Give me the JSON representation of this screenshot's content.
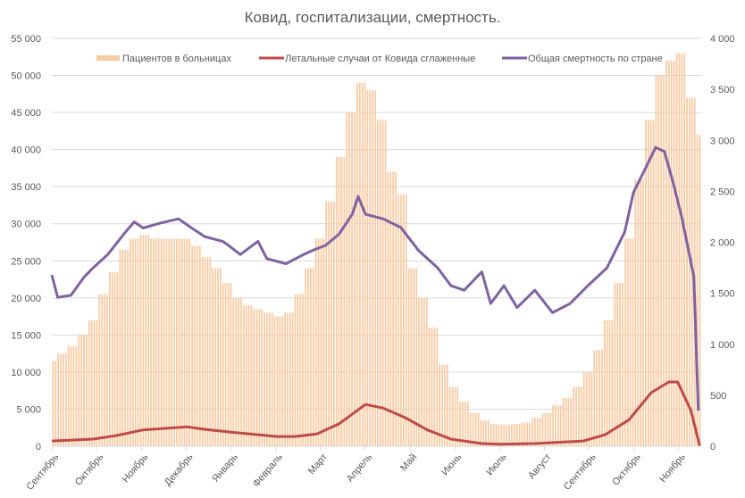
{
  "chart_data": {
    "type": "bar+line",
    "title": "Ковид, госпитализации, смертность.",
    "x_unit": "days since start of September 2020",
    "left_axis": {
      "ylim": [
        0,
        55000
      ],
      "step": 5000,
      "tick_labels": [
        "0",
        "5 000",
        "10 000",
        "15 000",
        "20 000",
        "25 000",
        "30 000",
        "35 000",
        "40 000",
        "45 000",
        "50 000",
        "55 000"
      ]
    },
    "right_axis": {
      "ylim": [
        0,
        4000
      ],
      "step": 500,
      "tick_labels": [
        "0",
        "500",
        "1 000",
        "1 500",
        "2 000",
        "2 500",
        "3 000",
        "3 500",
        "4 000"
      ]
    },
    "xlim": [
      0,
      441
    ],
    "month_labels": [
      "Сентябрь",
      "Октябрь",
      "Ноябрь",
      "Декабрь",
      "Январь",
      "Февраль",
      "Март",
      "Апрель",
      "Май",
      "Июнь",
      "Июль",
      "Август",
      "Сентябрь",
      "Октябрь",
      "Ноябрь"
    ],
    "month_length_days": 30.4,
    "grid": true,
    "legend_position": "top",
    "series": [
      {
        "name": "Пациентов в больницах",
        "type": "bar",
        "axis": "left",
        "color": "#f8cba4",
        "x_step_days": 7,
        "values": [
          11500,
          12500,
          13500,
          15000,
          17000,
          20500,
          23500,
          26500,
          28000,
          28500,
          28000,
          28000,
          28000,
          28000,
          27000,
          25500,
          24000,
          22000,
          20000,
          19000,
          18500,
          18000,
          17500,
          18000,
          20500,
          24000,
          28000,
          33000,
          39000,
          45000,
          49000,
          48000,
          44000,
          37000,
          34000,
          24000,
          20000,
          16000,
          11000,
          8000,
          6000,
          4500,
          3500,
          3000,
          2900,
          3000,
          3200,
          3800,
          4500,
          5500,
          6500,
          8000,
          10000,
          13000,
          17000,
          22000,
          28000,
          36000,
          44000,
          50000,
          52000,
          53000,
          47000,
          42000
        ]
      },
      {
        "name": "Летальные случаи от Ковида сглаженные",
        "type": "line",
        "axis": "right",
        "color": "#be4b48",
        "points": [
          [
            0,
            52
          ],
          [
            28,
            70
          ],
          [
            44,
            105
          ],
          [
            62,
            160
          ],
          [
            92,
            190
          ],
          [
            104,
            165
          ],
          [
            120,
            140
          ],
          [
            153,
            95
          ],
          [
            165,
            95
          ],
          [
            180,
            120
          ],
          [
            195,
            220
          ],
          [
            213,
            410
          ],
          [
            225,
            375
          ],
          [
            240,
            280
          ],
          [
            255,
            160
          ],
          [
            271,
            70
          ],
          [
            292,
            26
          ],
          [
            304,
            20
          ],
          [
            328,
            26
          ],
          [
            361,
            52
          ],
          [
            376,
            115
          ],
          [
            392,
            260
          ],
          [
            407,
            525
          ],
          [
            419,
            630
          ],
          [
            425,
            630
          ],
          [
            434,
            350
          ],
          [
            440,
            0
          ]
        ]
      },
      {
        "name": "Общая смертность по стране",
        "type": "line",
        "axis": "right",
        "color": "#7f62a1",
        "points": [
          [
            0,
            1680
          ],
          [
            4,
            1460
          ],
          [
            13,
            1480
          ],
          [
            22,
            1660
          ],
          [
            28,
            1750
          ],
          [
            38,
            1880
          ],
          [
            50,
            2100
          ],
          [
            56,
            2200
          ],
          [
            62,
            2140
          ],
          [
            74,
            2190
          ],
          [
            86,
            2230
          ],
          [
            95,
            2140
          ],
          [
            104,
            2055
          ],
          [
            116,
            2010
          ],
          [
            120,
            1970
          ],
          [
            128,
            1880
          ],
          [
            140,
            2010
          ],
          [
            146,
            1840
          ],
          [
            159,
            1790
          ],
          [
            171,
            1880
          ],
          [
            177,
            1920
          ],
          [
            186,
            1970
          ],
          [
            195,
            2080
          ],
          [
            204,
            2275
          ],
          [
            208,
            2450
          ],
          [
            213,
            2275
          ],
          [
            225,
            2230
          ],
          [
            237,
            2145
          ],
          [
            249,
            1920
          ],
          [
            262,
            1750
          ],
          [
            271,
            1575
          ],
          [
            280,
            1530
          ],
          [
            292,
            1710
          ],
          [
            298,
            1400
          ],
          [
            307,
            1575
          ],
          [
            316,
            1360
          ],
          [
            328,
            1530
          ],
          [
            340,
            1310
          ],
          [
            352,
            1400
          ],
          [
            364,
            1575
          ],
          [
            377,
            1750
          ],
          [
            389,
            2100
          ],
          [
            395,
            2490
          ],
          [
            404,
            2750
          ],
          [
            410,
            2930
          ],
          [
            416,
            2890
          ],
          [
            422,
            2580
          ],
          [
            428,
            2230
          ],
          [
            436,
            1660
          ],
          [
            439,
            350
          ]
        ]
      }
    ]
  }
}
